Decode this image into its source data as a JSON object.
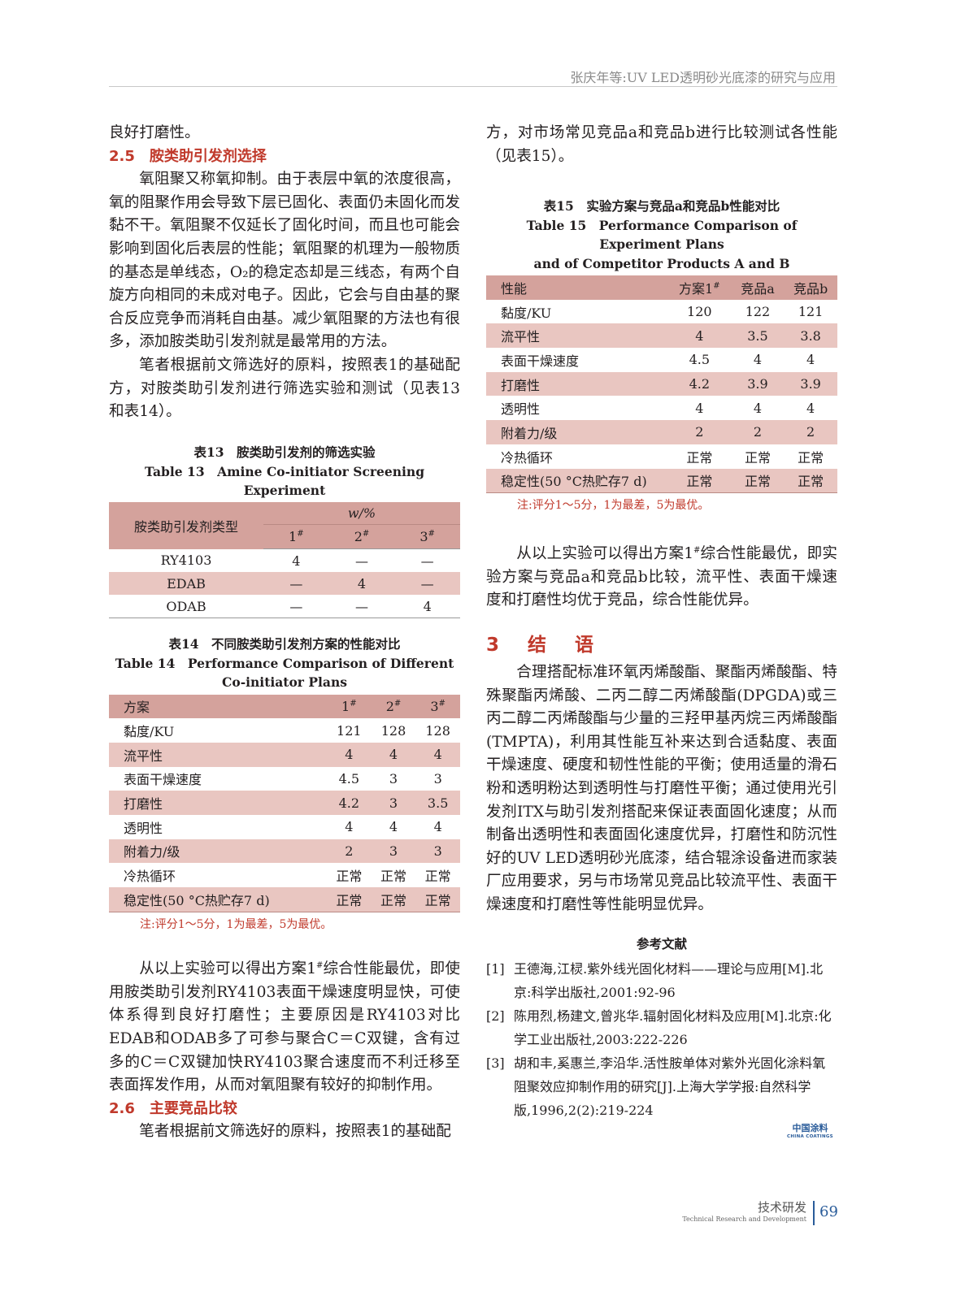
{
  "running_header": "张庆年等:UV LED透明砂光底漆的研究与应用",
  "left": {
    "para0": "良好打磨性。",
    "h25": "2.5　胺类助引发剂选择",
    "para1": "氧阻聚又称氧抑制。由于表层中氧的浓度很高，氧的阻聚作用会导致下层已固化、表面仍未固化而发黏不干。氧阻聚不仅延长了固化时间，而且也可能会影响到固化后表层的性能；氧阻聚的机理为一般物质的基态是单线态，O₂的稳定态却是三线态，有两个自旋方向相同的未成对电子。因此，它会与自由基的聚合反应竞争而消耗自由基。减少氧阻聚的方法也有很多，添加胺类助引发剂就是最常用的方法。",
    "para2": "笔者根据前文筛选好的原料，按照表1的基础配方，对胺类助引发剂进行筛选实验和测试（见表13和表14）。",
    "para3_a": "从以上实验可以得出方案1",
    "para3_sup": "#",
    "para3_b": "综合性能最优，即使用胺类助引发剂RY4103表面干燥速度明显快，可使体系得到良好打磨性；主要原因是RY4103对比EDAB和ODAB多了可参与聚合C＝C双键，含有过多的C＝C双键加快RY4103聚合速度而不利迁移至表面挥发作用，从而对氧阻聚有较好的抑制作用。",
    "h26": "2.6　主要竞品比较",
    "para4": "笔者根据前文筛选好的原料，按照表1的基础配"
  },
  "table13": {
    "title_cn": "表13　胺类助引发剂的筛选实验",
    "title_en": "Table 13　Amine Co-initiator Screening Experiment",
    "header_col": "胺类助引发剂类型",
    "unit": "w/%",
    "cols": [
      "1#",
      "2#",
      "3#"
    ],
    "rows": [
      [
        "RY4103",
        "4",
        "—",
        "—"
      ],
      [
        "EDAB",
        "—",
        "4",
        "—"
      ],
      [
        "ODAB",
        "—",
        "—",
        "4"
      ]
    ]
  },
  "table14": {
    "title_cn": "表14　不同胺类助引发剂方案的性能对比",
    "title_en1": "Table 14　Performance Comparison of Different",
    "title_en2": "Co-initiator Plans",
    "header": [
      "方案",
      "1#",
      "2#",
      "3#"
    ],
    "rows": [
      [
        "黏度/KU",
        "121",
        "128",
        "128"
      ],
      [
        "流平性",
        "4",
        "4",
        "4"
      ],
      [
        "表面干燥速度",
        "4.5",
        "3",
        "3"
      ],
      [
        "打磨性",
        "4.2",
        "3",
        "3.5"
      ],
      [
        "透明性",
        "4",
        "4",
        "4"
      ],
      [
        "附着力/级",
        "2",
        "3",
        "3"
      ],
      [
        "冷热循环",
        "正常",
        "正常",
        "正常"
      ],
      [
        "稳定性(50 °C热贮存7 d)",
        "正常",
        "正常",
        "正常"
      ]
    ],
    "note": "注:评分1～5分，1为最差，5为最优。"
  },
  "right": {
    "para0": "方，对市场常见竞品a和竞品b进行比较测试各性能（见表15）。",
    "para1_a": "从以上实验可以得出方案1",
    "para1_sup": "#",
    "para1_b": "综合性能最优，即实验方案与竞品a和竞品b比较，流平性、表面干燥速度和打磨性均优于竞品，综合性能优异。",
    "h3": "3　结　语",
    "para2": "合理搭配标准环氧丙烯酸酯、聚酯丙烯酸酯、特殊聚酯丙烯酸、二丙二醇二丙烯酸酯(DPGDA)或三丙二醇二丙烯酸酯与少量的三羟甲基丙烷三丙烯酸酯(TMPTA)，利用其性能互补来达到合适黏度、表面干燥速度、硬度和韧性性能的平衡；使用适量的滑石粉和透明粉达到透明性与打磨性平衡；通过使用光引发剂ITX与助引发剂搭配来保证表面固化速度；从而制备出透明性和表面固化速度优异，打磨性和防沉性好的UV LED透明砂光底漆，结合辊涂设备进而家装厂应用要求，另与市场常见竞品比较流平性、表面干燥速度和打磨性等性能明显优异。",
    "refs_title": "参考文献",
    "refs": [
      {
        "n": "[1]",
        "text": "王德海,江棂.紫外线光固化材料——理论与应用[M].北京:科学出版社,2001:92-96"
      },
      {
        "n": "[2]",
        "text": "陈用烈,杨建文,曾兆华.辐射固化材料及应用[M].北京:化学工业出版社,2003:222-226"
      },
      {
        "n": "[3]",
        "text": "胡和丰,奚惠兰,李沿华.活性胺单体对紫外光固化涂料氧阻聚效应抑制作用的研究[J].上海大学学报:自然科学版,1996,2(2):219-224"
      }
    ]
  },
  "table15": {
    "title_cn": "表15　实验方案与竞品a和竞品b性能对比",
    "title_en1": "Table 15　Performance Comparison of Experiment Plans",
    "title_en2": "and of Competitor Products A and B",
    "header": [
      "性能",
      "方案1#",
      "竞品a",
      "竞品b"
    ],
    "rows": [
      [
        "黏度/KU",
        "120",
        "122",
        "121"
      ],
      [
        "流平性",
        "4",
        "3.5",
        "3.8"
      ],
      [
        "表面干燥速度",
        "4.5",
        "4",
        "4"
      ],
      [
        "打磨性",
        "4.2",
        "3.9",
        "3.9"
      ],
      [
        "透明性",
        "4",
        "4",
        "4"
      ],
      [
        "附着力/级",
        "2",
        "2",
        "2"
      ],
      [
        "冷热循环",
        "正常",
        "正常",
        "正常"
      ],
      [
        "稳定性(50 °C热贮存7 d)",
        "正常",
        "正常",
        "正常"
      ]
    ],
    "note": "注:评分1～5分，1为最差，5为最优。"
  },
  "logo": {
    "cn": "中国涂料",
    "en": "CHINA COATINGS"
  },
  "footer": {
    "section_cn": "技术研发",
    "section_en": "Technical Research and Development",
    "page": "69"
  },
  "colors": {
    "accent": "#c0392b",
    "table_header": "#d4a29c",
    "table_stripe": "#e9c6c1",
    "logo": "#2a5c9a"
  }
}
